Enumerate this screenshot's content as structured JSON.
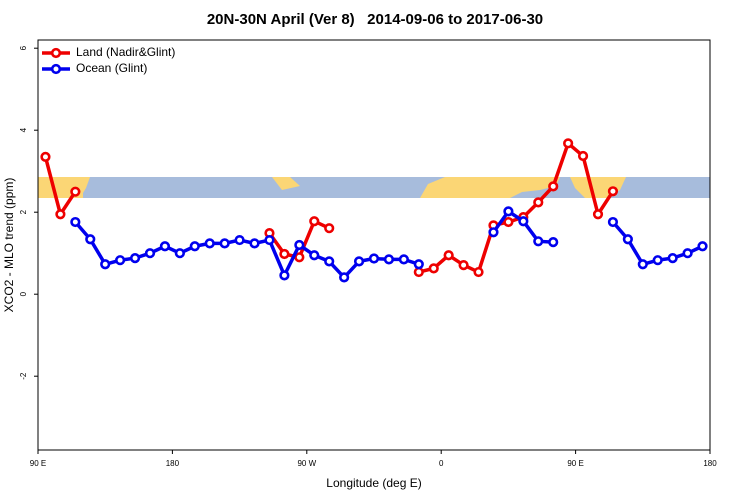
{
  "chart_data": {
    "type": "line",
    "title": "20N-30N April (Ver 8)   2014-09-06 to 2017-06-30",
    "x_label": "Longitude (deg E)",
    "y_label": "XCO2 - MLO trend (ppm)",
    "x": [
      95,
      105,
      115,
      125,
      135,
      145,
      155,
      165,
      175,
      185,
      195,
      205,
      215,
      225,
      235,
      245,
      255,
      265,
      275,
      285,
      295,
      305,
      315,
      325,
      335,
      345,
      355,
      365,
      375,
      385,
      395,
      405,
      415,
      425,
      435,
      445,
      455,
      465,
      475,
      485,
      495,
      505,
      515,
      525,
      535
    ],
    "series": [
      {
        "name": "Land (Nadir&Glint)",
        "color": "#ee0000",
        "values": [
          3.35,
          1.95,
          2.5,
          null,
          null,
          null,
          null,
          null,
          null,
          null,
          null,
          null,
          null,
          null,
          null,
          1.49,
          0.98,
          0.9,
          1.78,
          1.61,
          null,
          null,
          null,
          null,
          null,
          0.54,
          0.63,
          0.95,
          0.71,
          0.54,
          1.68,
          1.76,
          1.88,
          2.24,
          2.63,
          3.68,
          3.37,
          1.95,
          2.51,
          null,
          null,
          null,
          null,
          null,
          null
        ]
      },
      {
        "name": "Ocean (Glint)",
        "color": "#0000ee",
        "values": [
          null,
          null,
          1.76,
          1.34,
          0.73,
          0.83,
          0.88,
          1.0,
          1.17,
          1.0,
          1.17,
          1.24,
          1.24,
          1.32,
          1.24,
          1.32,
          0.46,
          1.2,
          0.95,
          0.8,
          0.41,
          0.8,
          0.87,
          0.85,
          0.85,
          0.73,
          null,
          null,
          null,
          null,
          1.51,
          2.02,
          1.78,
          1.29,
          1.27,
          null,
          null,
          null,
          1.76,
          1.34,
          0.73,
          0.83,
          0.88,
          1.0,
          1.17
        ]
      }
    ],
    "xlim": [
      90,
      540
    ],
    "xticks": [
      {
        "value": 90,
        "label": "90 E"
      },
      180,
      {
        "value": 270,
        "label": "90 W"
      },
      {
        "value": 360,
        "label": "0"
      },
      {
        "value": 450,
        "label": "90 E"
      },
      {
        "value": 540,
        "label": "180"
      }
    ],
    "ylim": [
      -3.8,
      6.2
    ],
    "yticks": [
      -2,
      0,
      2,
      4,
      6
    ],
    "legend": "top-left"
  }
}
